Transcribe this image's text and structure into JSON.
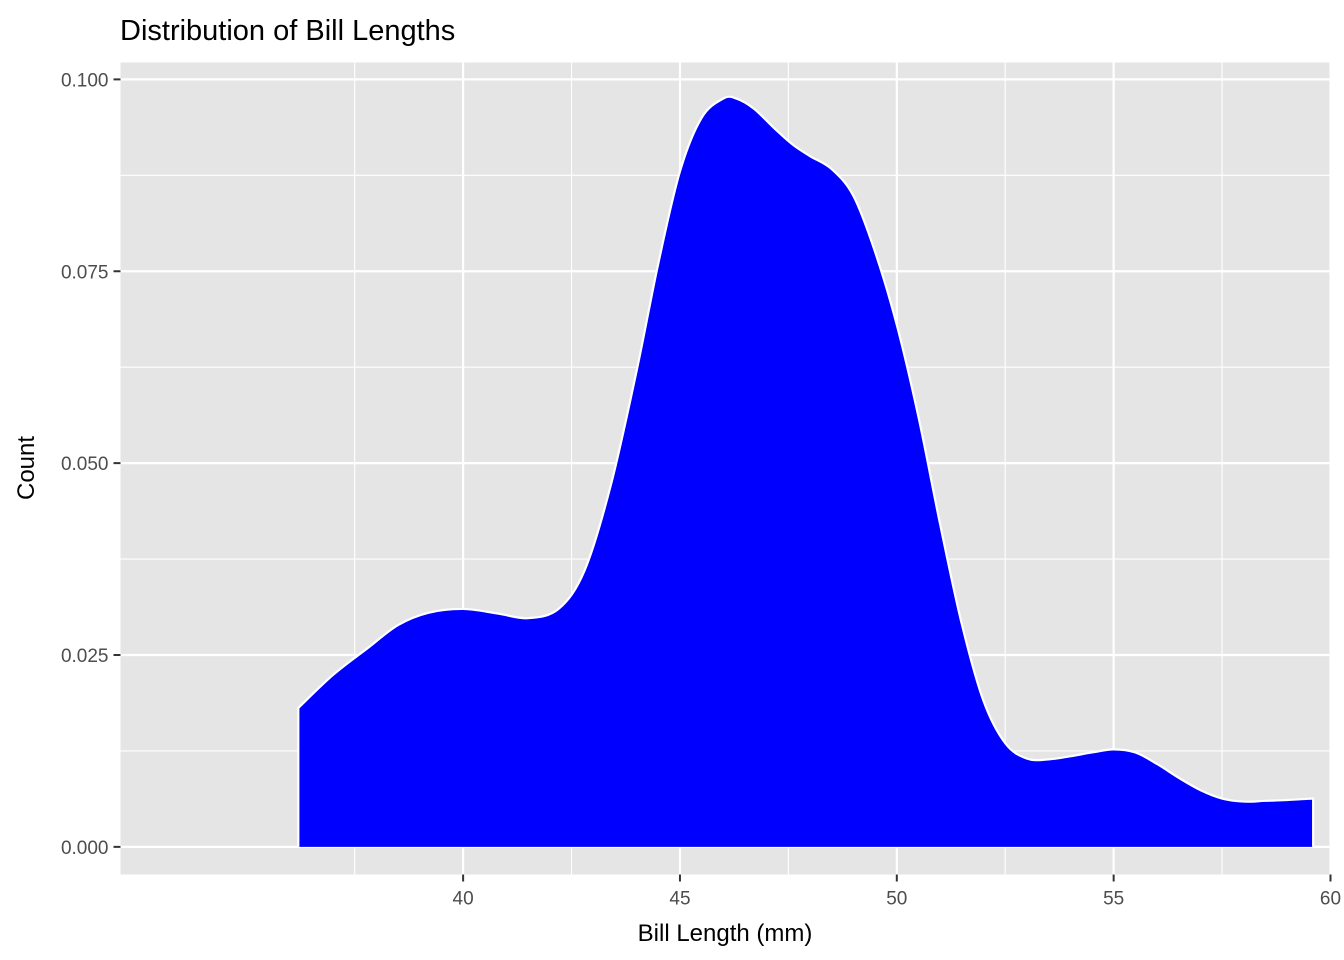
{
  "chart_data": {
    "type": "area",
    "title": "Distribution of Bill Lengths",
    "xlabel": "Bill Length (mm)",
    "ylabel": "Count",
    "xlim": [
      32.1,
      60.0
    ],
    "ylim": [
      -0.0036,
      0.1022
    ],
    "x_ticks": [
      40,
      45,
      50,
      55,
      60
    ],
    "x_tick_labels": [
      "40",
      "45",
      "50",
      "55",
      "60"
    ],
    "y_ticks": [
      0.0,
      0.025,
      0.05,
      0.075,
      0.1
    ],
    "y_tick_labels": [
      "0.000",
      "0.025",
      "0.050",
      "0.075",
      "0.100"
    ],
    "grid": true,
    "legend": "none",
    "fill_color": "#0000ff",
    "outline_color": "#ffffff",
    "panel_color": "#e5e5e5",
    "series": [
      {
        "x": [
          36.2,
          37.0,
          37.8,
          38.5,
          39.2,
          40.0,
          40.8,
          41.5,
          42.2,
          42.8,
          43.4,
          44.0,
          44.5,
          45.0,
          45.5,
          46.0,
          46.3,
          46.7,
          47.2,
          47.6,
          48.0,
          48.5,
          49.0,
          49.5,
          50.0,
          50.5,
          51.0,
          51.5,
          52.0,
          52.5,
          53.0,
          53.5,
          54.0,
          54.5,
          55.0,
          55.5,
          56.0,
          56.5,
          57.0,
          57.5,
          58.0,
          58.5,
          59.0,
          59.6
        ],
        "y": [
          0.0181,
          0.0224,
          0.0259,
          0.0289,
          0.0305,
          0.031,
          0.0304,
          0.0298,
          0.031,
          0.036,
          0.047,
          0.062,
          0.076,
          0.088,
          0.095,
          0.0975,
          0.0975,
          0.0962,
          0.0935,
          0.0915,
          0.09,
          0.0883,
          0.0848,
          0.0775,
          0.068,
          0.056,
          0.042,
          0.029,
          0.019,
          0.0135,
          0.0115,
          0.0114,
          0.0118,
          0.0123,
          0.0127,
          0.0123,
          0.0108,
          0.009,
          0.0074,
          0.0063,
          0.0059,
          0.006,
          0.0061,
          0.0063
        ]
      }
    ]
  }
}
